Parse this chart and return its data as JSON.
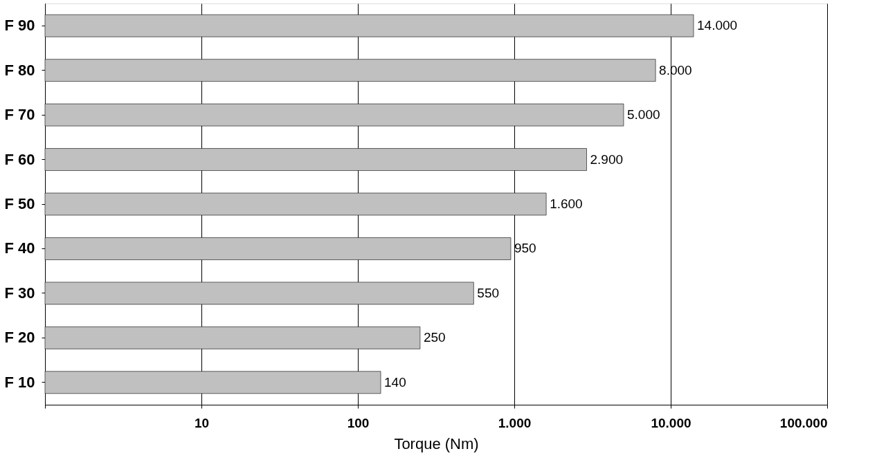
{
  "chart_data": {
    "type": "bar",
    "orientation": "horizontal",
    "xlabel": "Torque (Nm)",
    "categories": [
      "F 90",
      "F 80",
      "F 70",
      "F 60",
      "F 50",
      "F 40",
      "F 30",
      "F 20",
      "F 10"
    ],
    "values": [
      14000,
      8000,
      5000,
      2900,
      1600,
      950,
      550,
      250,
      140
    ],
    "value_labels": [
      "14.000",
      "8.000",
      "5.000",
      "2.900",
      "1.600",
      "950",
      "550",
      "250",
      "140"
    ],
    "color": "#c0c0c0",
    "log": "x",
    "grid": "x",
    "xlim": [
      1,
      100000
    ],
    "xticks": [
      {
        "value": 1,
        "label": null
      },
      {
        "value": 10,
        "label": "10"
      },
      {
        "value": 100,
        "label": "100"
      },
      {
        "value": 1000,
        "label": "1.000"
      },
      {
        "value": 10000,
        "label": "10.000"
      },
      {
        "value": 100000,
        "label": "100.000"
      }
    ]
  }
}
